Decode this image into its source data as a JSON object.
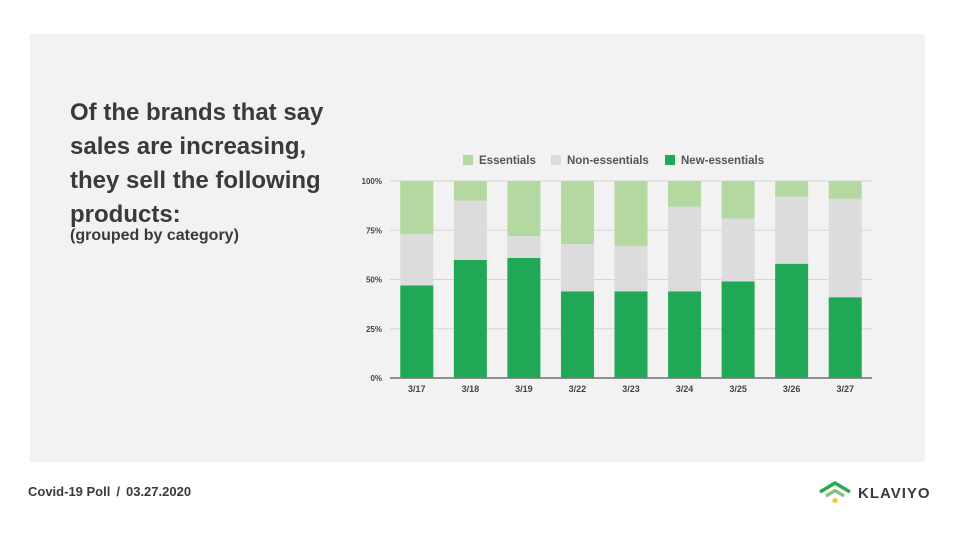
{
  "slide": {
    "headline": "Of the brands that say sales are increasing, they sell the following products:",
    "subhead": "(grouped by category)"
  },
  "footer": {
    "label": "Covid-19 Poll",
    "separator": "/",
    "date": "03.27.2020"
  },
  "logo": {
    "text": "KLAVIYO",
    "icon": "klaviyo-wifi-icon",
    "color": "#2ea84f"
  },
  "colors": {
    "essentials": "#b3d9a0",
    "non_essentials": "#dcdcdc",
    "new_essentials": "#21a857"
  },
  "chart_data": {
    "type": "bar",
    "stacked": true,
    "categories": [
      "3/17",
      "3/18",
      "3/19",
      "3/22",
      "3/23",
      "3/24",
      "3/25",
      "3/26",
      "3/27"
    ],
    "series": [
      {
        "name": "Essentials",
        "values": [
          27,
          10,
          28,
          32,
          33,
          13,
          19,
          8,
          9
        ]
      },
      {
        "name": "Non-essentials",
        "values": [
          26,
          30,
          11,
          24,
          23,
          43,
          32,
          34,
          50
        ]
      },
      {
        "name": "New-essentials",
        "values": [
          47,
          60,
          61,
          44,
          44,
          44,
          49,
          58,
          41
        ]
      }
    ],
    "yticks": [
      "0%",
      "25%",
      "50%",
      "75%",
      "100%"
    ],
    "ylim": [
      0,
      100
    ],
    "legend_position": "top",
    "grid": true
  }
}
